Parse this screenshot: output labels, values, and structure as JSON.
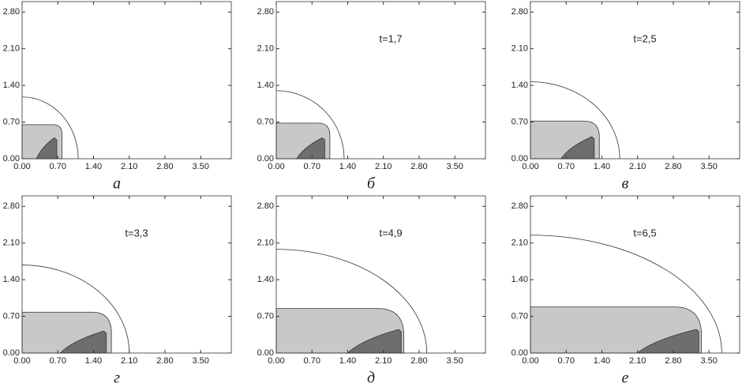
{
  "chart_data": [
    {
      "type": "contour",
      "caption": "а",
      "annotation": null,
      "xlim": [
        0,
        4.1
      ],
      "ylim": [
        0,
        3.0
      ],
      "xticks": [
        {
          "value": 0,
          "label": "0.00"
        },
        {
          "value": 0.7,
          "label": "0.70"
        },
        {
          "value": 1.4,
          "label": "1.40"
        },
        {
          "value": 2.1,
          "label": "2.10"
        },
        {
          "value": 2.8,
          "label": "2.80"
        },
        {
          "value": 3.5,
          "label": "3.50"
        }
      ],
      "yticks": [
        {
          "value": 0,
          "label": "0.00"
        },
        {
          "value": 0.7,
          "label": "0.70"
        },
        {
          "value": 1.4,
          "label": "1.40"
        },
        {
          "value": 2.1,
          "label": "2.10"
        },
        {
          "value": 2.8,
          "label": "2.80"
        }
      ],
      "front": {
        "x": 1.1,
        "y": 1.18
      },
      "zone": {
        "x": 0.78,
        "y": 0.65
      },
      "core": {
        "x0": 0.28,
        "x1": 0.68,
        "y": 0.4
      }
    },
    {
      "type": "contour",
      "caption": "б",
      "annotation": "t=1,7",
      "xlim": [
        0,
        4.1
      ],
      "ylim": [
        0,
        3.0
      ],
      "xticks": [
        {
          "value": 0,
          "label": "0.00"
        },
        {
          "value": 0.7,
          "label": "0.70"
        },
        {
          "value": 1.4,
          "label": "1.40"
        },
        {
          "value": 2.1,
          "label": "2.10"
        },
        {
          "value": 2.8,
          "label": "2.80"
        },
        {
          "value": 3.5,
          "label": "3.50"
        }
      ],
      "yticks": [
        {
          "value": 0,
          "label": "0.00"
        },
        {
          "value": 0.7,
          "label": "0.70"
        },
        {
          "value": 1.4,
          "label": "1.40"
        },
        {
          "value": 2.1,
          "label": "2.10"
        },
        {
          "value": 2.8,
          "label": "2.80"
        }
      ],
      "front": {
        "x": 1.33,
        "y": 1.3
      },
      "zone": {
        "x": 1.05,
        "y": 0.68
      },
      "core": {
        "x0": 0.4,
        "x1": 0.95,
        "y": 0.4
      }
    },
    {
      "type": "contour",
      "caption": "в",
      "annotation": "t=2,5",
      "xlim": [
        0,
        4.1
      ],
      "ylim": [
        0,
        3.0
      ],
      "xticks": [
        {
          "value": 0,
          "label": "0.00"
        },
        {
          "value": 0.7,
          "label": "0.70"
        },
        {
          "value": 1.4,
          "label": "1.40"
        },
        {
          "value": 2.1,
          "label": "2.10"
        },
        {
          "value": 2.8,
          "label": "2.80"
        },
        {
          "value": 3.5,
          "label": "3.50"
        }
      ],
      "yticks": [
        {
          "value": 0,
          "label": "0.00"
        },
        {
          "value": 0.7,
          "label": "0.70"
        },
        {
          "value": 1.4,
          "label": "1.40"
        },
        {
          "value": 2.1,
          "label": "2.10"
        },
        {
          "value": 2.8,
          "label": "2.80"
        }
      ],
      "front": {
        "x": 1.75,
        "y": 1.47
      },
      "zone": {
        "x": 1.35,
        "y": 0.72
      },
      "core": {
        "x0": 0.6,
        "x1": 1.25,
        "y": 0.42
      }
    },
    {
      "type": "contour",
      "caption": "г",
      "annotation": "t=3,3",
      "xlim": [
        0,
        4.1
      ],
      "ylim": [
        0,
        3.0
      ],
      "xticks": [
        {
          "value": 0,
          "label": "0.00"
        },
        {
          "value": 0.7,
          "label": "0.70"
        },
        {
          "value": 1.4,
          "label": "1.40"
        },
        {
          "value": 2.1,
          "label": "2.10"
        },
        {
          "value": 2.8,
          "label": "2.80"
        },
        {
          "value": 3.5,
          "label": "3.50"
        }
      ],
      "yticks": [
        {
          "value": 0,
          "label": "0.00"
        },
        {
          "value": 0.7,
          "label": "0.70"
        },
        {
          "value": 1.4,
          "label": "1.40"
        },
        {
          "value": 2.1,
          "label": "2.10"
        },
        {
          "value": 2.8,
          "label": "2.80"
        }
      ],
      "front": {
        "x": 2.1,
        "y": 1.68
      },
      "zone": {
        "x": 1.75,
        "y": 0.78
      },
      "core": {
        "x0": 0.75,
        "x1": 1.65,
        "y": 0.42
      }
    },
    {
      "type": "contour",
      "caption": "д",
      "annotation": "t=4,9",
      "xlim": [
        0,
        4.1
      ],
      "ylim": [
        0,
        3.0
      ],
      "xticks": [
        {
          "value": 0,
          "label": "0.00"
        },
        {
          "value": 0.7,
          "label": "0.70"
        },
        {
          "value": 1.4,
          "label": "1.40"
        },
        {
          "value": 2.1,
          "label": "2.10"
        },
        {
          "value": 2.8,
          "label": "2.80"
        },
        {
          "value": 3.5,
          "label": "3.50"
        }
      ],
      "yticks": [
        {
          "value": 0,
          "label": "0.00"
        },
        {
          "value": 0.7,
          "label": "0.70"
        },
        {
          "value": 1.4,
          "label": "1.40"
        },
        {
          "value": 2.1,
          "label": "2.10"
        },
        {
          "value": 2.8,
          "label": "2.80"
        }
      ],
      "front": {
        "x": 2.95,
        "y": 1.98
      },
      "zone": {
        "x": 2.5,
        "y": 0.85
      },
      "core": {
        "x0": 1.4,
        "x1": 2.45,
        "y": 0.45
      }
    },
    {
      "type": "contour",
      "caption": "е",
      "annotation": "t=6,5",
      "xlim": [
        0,
        4.1
      ],
      "ylim": [
        0,
        3.0
      ],
      "xticks": [
        {
          "value": 0,
          "label": "0.00"
        },
        {
          "value": 0.7,
          "label": "0.70"
        },
        {
          "value": 1.4,
          "label": "1.40"
        },
        {
          "value": 2.1,
          "label": "2.10"
        },
        {
          "value": 2.8,
          "label": "2.80"
        },
        {
          "value": 3.5,
          "label": "3.50"
        }
      ],
      "yticks": [
        {
          "value": 0,
          "label": "0.00"
        },
        {
          "value": 0.7,
          "label": "0.70"
        },
        {
          "value": 1.4,
          "label": "1.40"
        },
        {
          "value": 2.1,
          "label": "2.10"
        },
        {
          "value": 2.8,
          "label": "2.80"
        }
      ],
      "front": {
        "x": 3.75,
        "y": 2.25
      },
      "zone": {
        "x": 3.35,
        "y": 0.88
      },
      "core": {
        "x0": 2.1,
        "x1": 3.3,
        "y": 0.45
      }
    }
  ]
}
